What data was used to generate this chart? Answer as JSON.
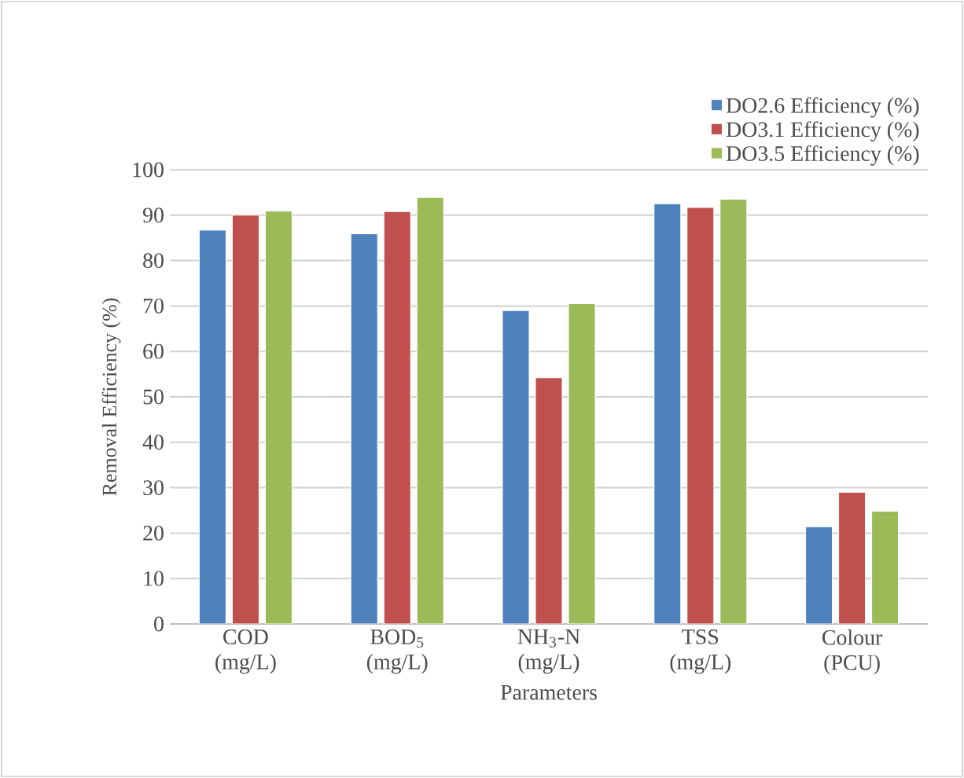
{
  "chart_data": {
    "type": "bar",
    "categories": [
      "COD (mg/L)",
      "BOD$_{5}$ (mg/L)",
      "NH$_{3}$-N (mg/L)",
      "TSS (mg/L)",
      "Colour (PCU)"
    ],
    "series": [
      {
        "name": "DO2.6 Efficiency (%)",
        "color": "#4f81bd",
        "values": [
          86.7,
          85.9,
          69.0,
          92.5,
          21.4
        ]
      },
      {
        "name": "DO3.1 Efficiency (%)",
        "color": "#c0504d",
        "values": [
          90.0,
          90.8,
          54.2,
          91.7,
          29.0
        ]
      },
      {
        "name": "DO3.5 Efficiency (%)",
        "color": "#9bbb59",
        "values": [
          90.9,
          93.9,
          70.5,
          93.5,
          24.8
        ]
      }
    ],
    "xlabel": "Parameters",
    "ylabel": "Removal Efficiency (%)",
    "ylim": [
      0,
      100
    ],
    "yticks": [
      0,
      10,
      20,
      30,
      40,
      50,
      60,
      70,
      80,
      90,
      100
    ],
    "grid": "y",
    "legend": "top right"
  }
}
